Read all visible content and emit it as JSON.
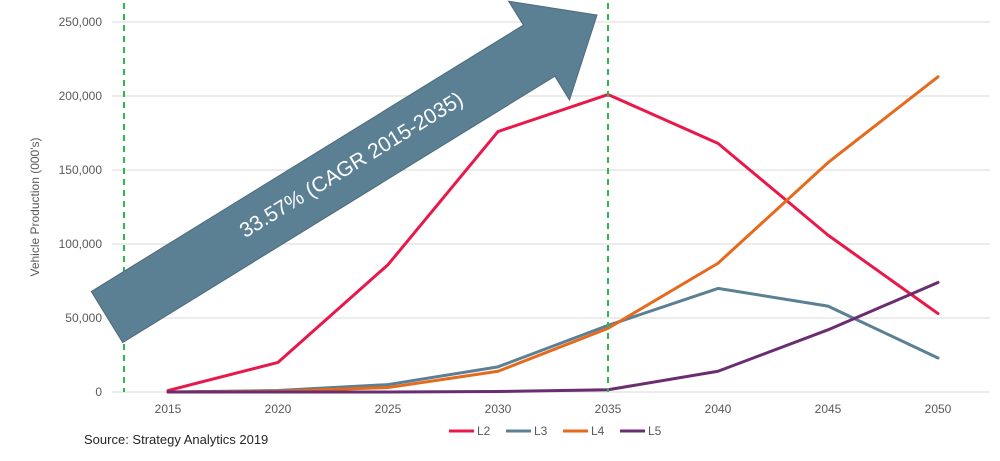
{
  "chart_data": {
    "type": "line",
    "title": "",
    "xlabel": "",
    "ylabel": "Vehicle Production (000's)",
    "x": [
      2015,
      2020,
      2025,
      2030,
      2035,
      2040,
      2045,
      2050
    ],
    "ylim": [
      0,
      250000
    ],
    "yticks": [
      0,
      50000,
      100000,
      150000,
      200000,
      250000
    ],
    "ytick_labels": [
      "0",
      "50,000",
      "100,000",
      "150,000",
      "200,000",
      "250,000"
    ],
    "grid": "horizontal",
    "legend_position": "bottom",
    "series": [
      {
        "name": "L2",
        "color": "#e8194a",
        "values": [
          1000,
          20000,
          86000,
          176000,
          201000,
          168000,
          106000,
          53000
        ]
      },
      {
        "name": "L3",
        "color": "#5b7f93",
        "values": [
          0,
          1000,
          5000,
          17000,
          45000,
          70000,
          58000,
          23000
        ]
      },
      {
        "name": "L4",
        "color": "#e56a1e",
        "values": [
          0,
          500,
          3000,
          14000,
          43000,
          87000,
          155000,
          213000
        ]
      },
      {
        "name": "L5",
        "color": "#6b2d72",
        "values": [
          0,
          0,
          0,
          300,
          1500,
          14000,
          42000,
          74000
        ]
      }
    ],
    "reference_lines": {
      "color": "#2db84c",
      "x": [
        2013,
        2035
      ]
    },
    "annotation": {
      "text": "33.57% (CAGR 2015-2035)",
      "color": "#5b7f93"
    }
  },
  "source": "Source: Strategy Analytics 2019"
}
